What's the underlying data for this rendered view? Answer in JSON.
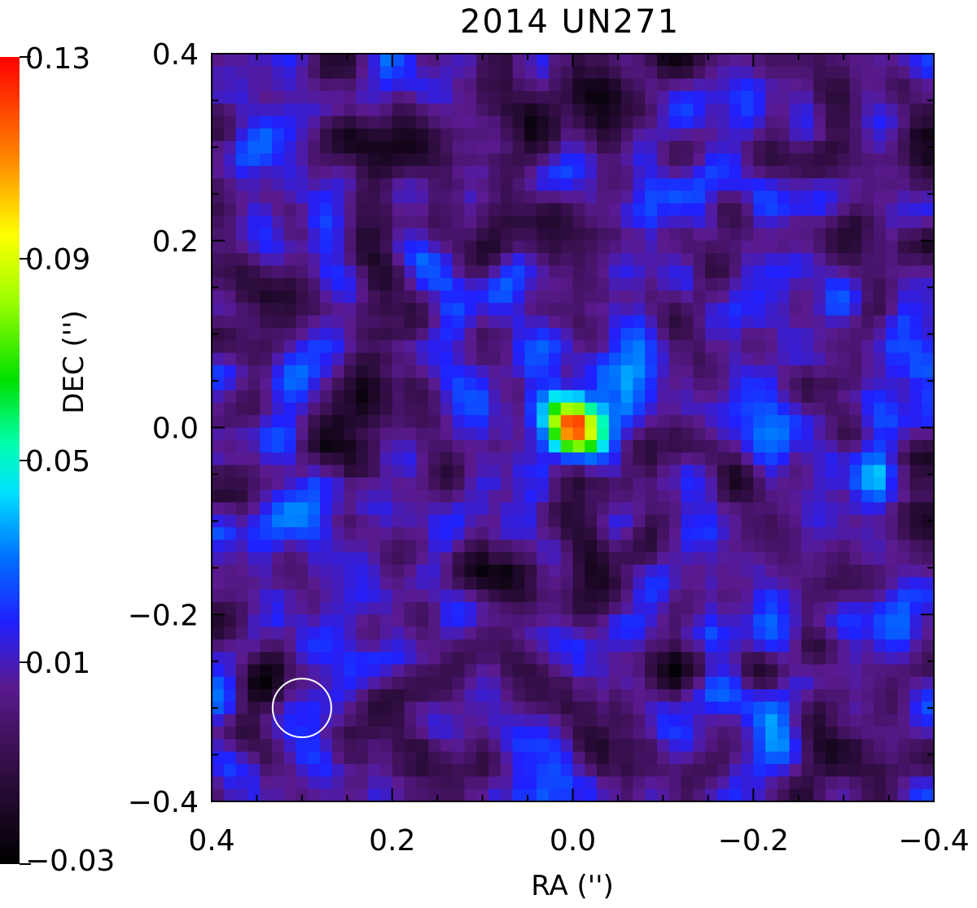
{
  "chart_data": {
    "type": "heatmap",
    "title": "2014 UN271",
    "xlabel": "RA ('')",
    "ylabel": "DEC ('')",
    "xlim": [
      0.4,
      -0.4
    ],
    "ylim": [
      -0.4,
      0.4
    ],
    "x_ticks": [
      {
        "value": 0.4,
        "label": "0.4"
      },
      {
        "value": 0.2,
        "label": "0.2"
      },
      {
        "value": 0.0,
        "label": "0.0"
      },
      {
        "value": -0.2,
        "label": "−0.2"
      },
      {
        "value": -0.4,
        "label": "−0.4"
      }
    ],
    "y_ticks": [
      {
        "value": 0.4,
        "label": "0.4"
      },
      {
        "value": 0.2,
        "label": "0.2"
      },
      {
        "value": 0.0,
        "label": "0.0"
      },
      {
        "value": -0.2,
        "label": "−0.2"
      },
      {
        "value": -0.4,
        "label": "−0.4"
      }
    ],
    "colorbar": {
      "range": [
        -0.03,
        0.13
      ],
      "colormap": "rainbow (black-purple-blue-cyan-green-yellow-red)",
      "ticks": [
        {
          "value": 0.13,
          "label": "0.13"
        },
        {
          "value": 0.09,
          "label": "0.09"
        },
        {
          "value": 0.05,
          "label": "0.05"
        },
        {
          "value": 0.01,
          "label": "0.01"
        },
        {
          "value": -0.03,
          "label": "−0.03"
        }
      ]
    },
    "peak": {
      "ra": 0.0,
      "dec": 0.0,
      "value": 0.13
    },
    "beam_circle": {
      "ra": 0.3,
      "dec": -0.3,
      "diameter": 0.065,
      "color": "#ffffff"
    },
    "background_level": 0.005,
    "colors": {
      "black": "#000000",
      "purple": "#5a1a7a",
      "blue": "#1a1aff",
      "cyan": "#00ffff",
      "green": "#00e000",
      "yellow": "#ffff00",
      "red": "#ff0000"
    }
  }
}
